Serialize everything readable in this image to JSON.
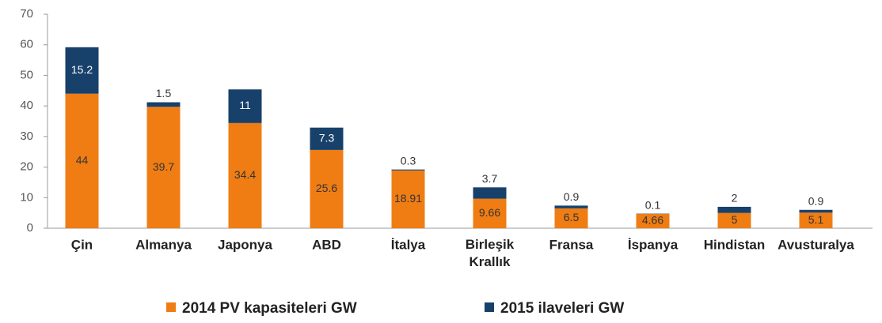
{
  "chart_data": {
    "type": "stacked_bar",
    "categories": [
      "Çin",
      "Almanya",
      "Japonya",
      "ABD",
      "İtalya",
      "Birleşik Krallık",
      "Fransa",
      "İspanya",
      "Hindistan",
      "Avusturalya"
    ],
    "series": [
      {
        "name": "2014 PV kapasiteleri GW",
        "color": "#ef7d14",
        "values": [
          44,
          39.7,
          34.4,
          25.6,
          18.91,
          9.66,
          6.5,
          4.66,
          5,
          5.1
        ]
      },
      {
        "name": "2015 ilaveleri GW",
        "color": "#17406a",
        "values": [
          15.2,
          1.5,
          11,
          7.3,
          0.3,
          3.7,
          0.9,
          0.1,
          2,
          0.9
        ]
      }
    ],
    "ylim": [
      0,
      70
    ],
    "yticks": [
      0,
      10,
      20,
      30,
      40,
      50,
      60,
      70
    ],
    "grid": false,
    "legend": "bottom"
  }
}
